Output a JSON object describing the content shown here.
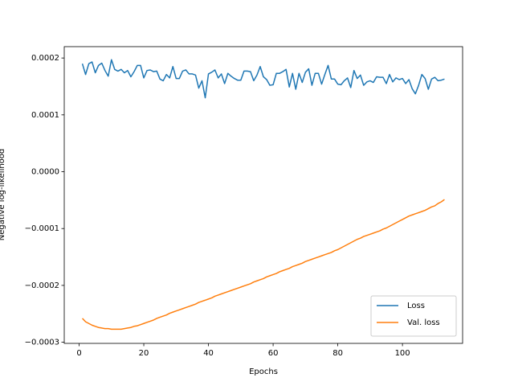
{
  "chart_data": {
    "type": "line",
    "xlabel": "Epochs",
    "ylabel": "Negative log-likelihood",
    "x": [
      1,
      2,
      3,
      4,
      5,
      6,
      7,
      8,
      9,
      10,
      11,
      12,
      13,
      14,
      15,
      16,
      17,
      18,
      19,
      20,
      21,
      22,
      23,
      24,
      25,
      26,
      27,
      28,
      29,
      30,
      31,
      32,
      33,
      34,
      35,
      36,
      37,
      38,
      39,
      40,
      41,
      42,
      43,
      44,
      45,
      46,
      47,
      48,
      49,
      50,
      51,
      52,
      53,
      54,
      55,
      56,
      57,
      58,
      59,
      60,
      61,
      62,
      63,
      64,
      65,
      66,
      67,
      68,
      69,
      70,
      71,
      72,
      73,
      74,
      75,
      76,
      77,
      78,
      79,
      80,
      81,
      82,
      83,
      84,
      85,
      86,
      87,
      88,
      89,
      90,
      91,
      92,
      93,
      94,
      95,
      96,
      97,
      98,
      99,
      100,
      101,
      102,
      103,
      104,
      105,
      106,
      107,
      108,
      109,
      110,
      111,
      112,
      113
    ],
    "series": [
      {
        "name": "Loss",
        "color": "#1f77b4",
        "values": [
          0.00019,
          0.000171,
          0.00019,
          0.000193,
          0.000174,
          0.000187,
          0.000191,
          0.000178,
          0.000168,
          0.000197,
          0.00018,
          0.000177,
          0.00018,
          0.000174,
          0.000178,
          0.000167,
          0.000176,
          0.000187,
          0.000187,
          0.000165,
          0.000178,
          0.000179,
          0.000176,
          0.000177,
          0.000163,
          0.00016,
          0.000171,
          0.000165,
          0.000185,
          0.000164,
          0.000164,
          0.000177,
          0.000179,
          0.000172,
          0.000172,
          0.00017,
          0.000147,
          0.00016,
          0.00013,
          0.000172,
          0.000175,
          0.000179,
          0.000165,
          0.000172,
          0.000155,
          0.000173,
          0.000168,
          0.000164,
          0.000161,
          0.000161,
          0.000177,
          0.000177,
          0.000176,
          0.00016,
          0.00017,
          0.000185,
          0.000167,
          0.000162,
          0.000152,
          0.000153,
          0.000173,
          0.000173,
          0.000176,
          0.00018,
          0.000149,
          0.000173,
          0.000145,
          0.000173,
          0.000157,
          0.000175,
          0.000181,
          0.000152,
          0.000173,
          0.000173,
          0.000154,
          0.000171,
          0.000187,
          0.000163,
          0.000163,
          0.000154,
          0.000153,
          0.00016,
          0.000165,
          0.000148,
          0.000178,
          0.000164,
          0.00017,
          0.000152,
          0.000158,
          0.00016,
          0.000157,
          0.000167,
          0.000166,
          0.000166,
          0.000155,
          0.000171,
          0.000158,
          0.000165,
          0.000162,
          0.000164,
          0.000155,
          0.000162,
          0.000146,
          0.000137,
          0.000152,
          0.000171,
          0.000164,
          0.000145,
          0.000163,
          0.000166,
          0.00016,
          0.000161,
          0.000163
        ]
      },
      {
        "name": "Val. loss",
        "color": "#ff7f0e",
        "values": [
          -0.000258,
          -0.000264,
          -0.000267,
          -0.00027,
          -0.000272,
          -0.000274,
          -0.000275,
          -0.000276,
          -0.000276,
          -0.000277,
          -0.000277,
          -0.000277,
          -0.000277,
          -0.000276,
          -0.000275,
          -0.000274,
          -0.000272,
          -0.000271,
          -0.000269,
          -0.000267,
          -0.000265,
          -0.000263,
          -0.000261,
          -0.000258,
          -0.000256,
          -0.000254,
          -0.000252,
          -0.000249,
          -0.000247,
          -0.000245,
          -0.000243,
          -0.000241,
          -0.000239,
          -0.000237,
          -0.000235,
          -0.000233,
          -0.00023,
          -0.000228,
          -0.000226,
          -0.000224,
          -0.000222,
          -0.000219,
          -0.000217,
          -0.000215,
          -0.000213,
          -0.000211,
          -0.000209,
          -0.000207,
          -0.000205,
          -0.000203,
          -0.000201,
          -0.000199,
          -0.000197,
          -0.000194,
          -0.000192,
          -0.00019,
          -0.000188,
          -0.000185,
          -0.000183,
          -0.000181,
          -0.000179,
          -0.000176,
          -0.000174,
          -0.000172,
          -0.00017,
          -0.000167,
          -0.000165,
          -0.000163,
          -0.000161,
          -0.000158,
          -0.000156,
          -0.000154,
          -0.000152,
          -0.00015,
          -0.000148,
          -0.000146,
          -0.000144,
          -0.000142,
          -0.000139,
          -0.000137,
          -0.000134,
          -0.000131,
          -0.000128,
          -0.000125,
          -0.000122,
          -0.000119,
          -0.000117,
          -0.000114,
          -0.000112,
          -0.00011,
          -0.000108,
          -0.000106,
          -0.000104,
          -0.000101,
          -9.9e-05,
          -9.6e-05,
          -9.3e-05,
          -9e-05,
          -8.7e-05,
          -8.4e-05,
          -8.1e-05,
          -7.8e-05,
          -7.6e-05,
          -7.4e-05,
          -7.2e-05,
          -7e-05,
          -6.8e-05,
          -6.5e-05,
          -6.2e-05,
          -6e-05,
          -5.6e-05,
          -5.3e-05,
          -4.9e-05
        ]
      }
    ],
    "xlim": [
      -4.6,
      118.6
    ],
    "xticks": [
      0,
      20,
      40,
      60,
      80,
      100
    ],
    "ylim": [
      -0.000302,
      0.00022
    ],
    "yticks": [
      {
        "value": -0.0003,
        "label": "−0.0003"
      },
      {
        "value": -0.0002,
        "label": "−0.0002"
      },
      {
        "value": -0.0001,
        "label": "−0.0001"
      },
      {
        "value": 0,
        "label": "0.0000"
      },
      {
        "value": 0.0001,
        "label": "0.0001"
      },
      {
        "value": 0.0002,
        "label": "0.0002"
      }
    ],
    "legend": "lower right",
    "grid": false
  }
}
